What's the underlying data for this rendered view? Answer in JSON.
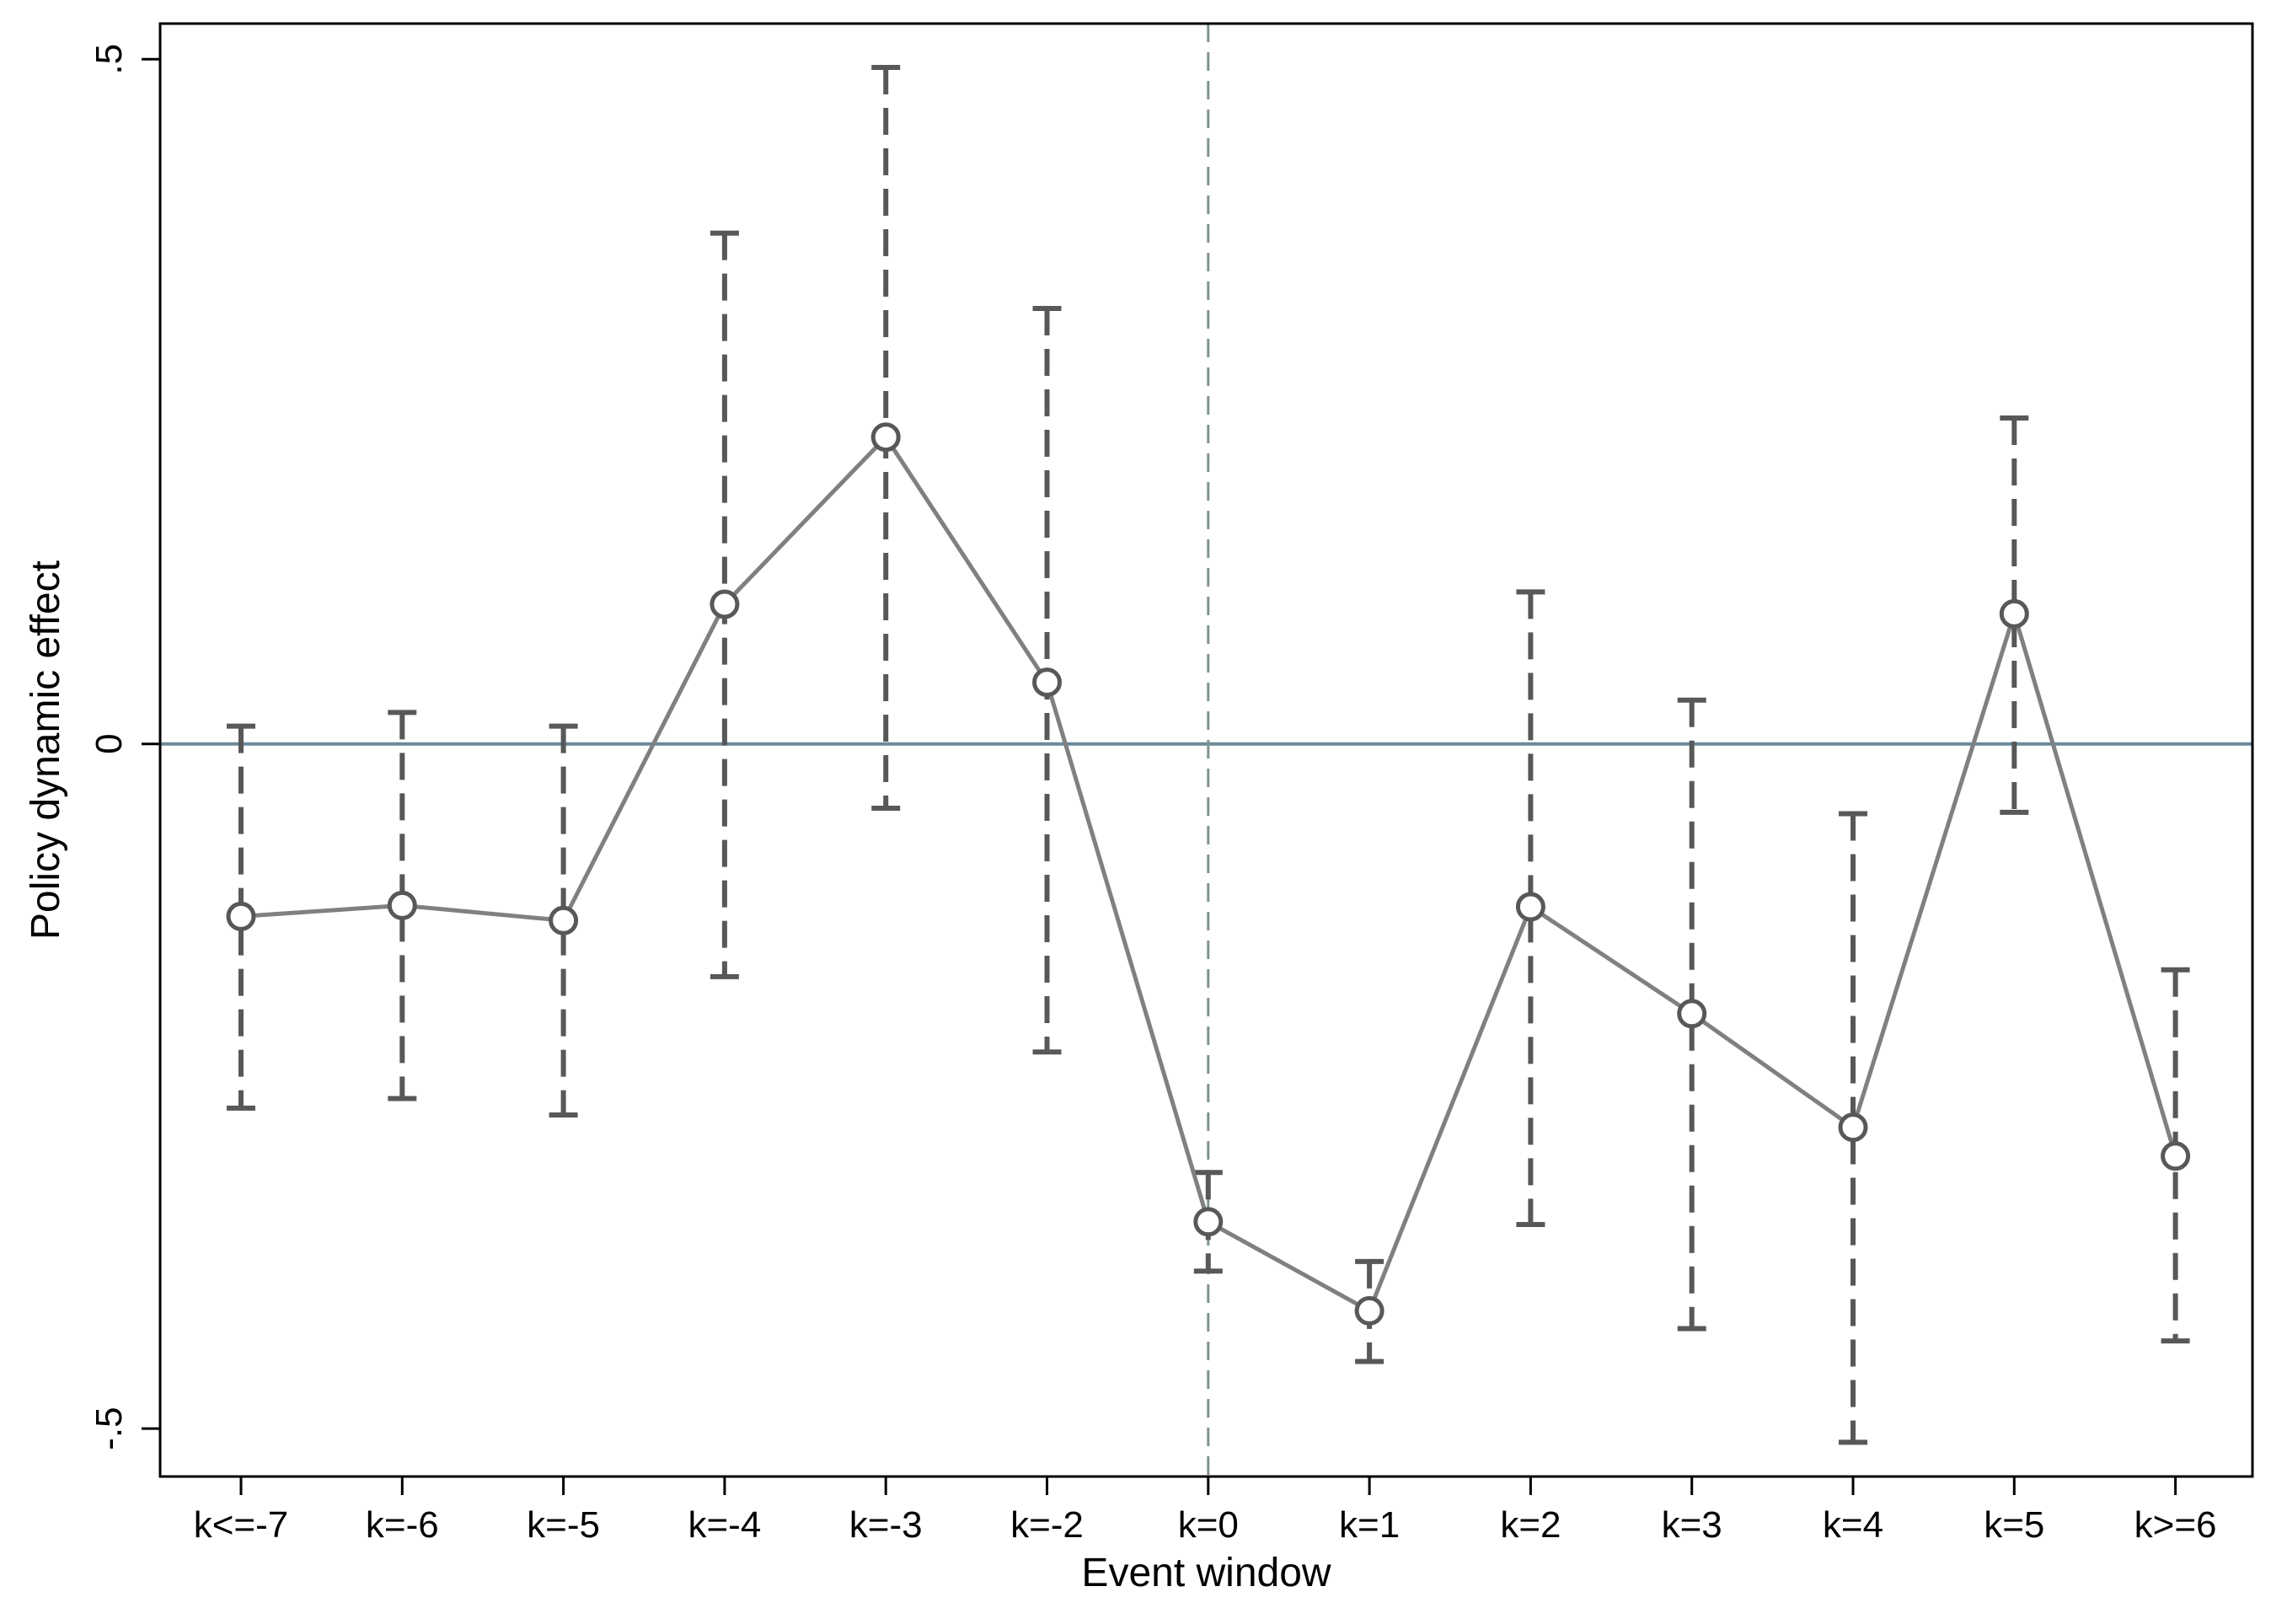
{
  "chart_data": {
    "type": "line",
    "title": "",
    "xlabel": "Event window",
    "ylabel": "Policy dynamic effect",
    "categories": [
      "k<=-7",
      "k=-6",
      "k=-5",
      "k=-4",
      "k=-3",
      "k=-2",
      "k=0",
      "k=1",
      "k=2",
      "k=3",
      "k=4",
      "k=5",
      "k>=6"
    ],
    "ylim": [
      -0.535,
      0.526
    ],
    "yticks": [
      {
        "value": 0.5,
        "label": ".5"
      },
      {
        "value": 0,
        "label": "0"
      },
      {
        "value": -0.5,
        "label": "-.5"
      }
    ],
    "series": [
      {
        "values": [
          -0.126,
          -0.118,
          -0.129,
          0.102,
          0.224,
          0.045,
          -0.349,
          -0.414,
          -0.119,
          -0.197,
          -0.28,
          0.095,
          -0.301
        ],
        "ci_low": [
          -0.266,
          -0.259,
          -0.271,
          -0.17,
          -0.047,
          -0.225,
          -0.385,
          -0.451,
          -0.351,
          -0.427,
          -0.51,
          -0.05,
          -0.436
        ],
        "ci_high": [
          0.013,
          0.023,
          0.013,
          0.373,
          0.494,
          0.318,
          -0.313,
          -0.378,
          0.111,
          0.032,
          -0.051,
          0.238,
          -0.165
        ]
      }
    ],
    "reference_lines": {
      "y": 0,
      "x_category": "k=0"
    },
    "colors": {
      "line": "#808080",
      "ci": "#585858",
      "hline": "#6a8a9a",
      "vline": "#7d958d"
    },
    "grid": false,
    "legend": "none"
  }
}
